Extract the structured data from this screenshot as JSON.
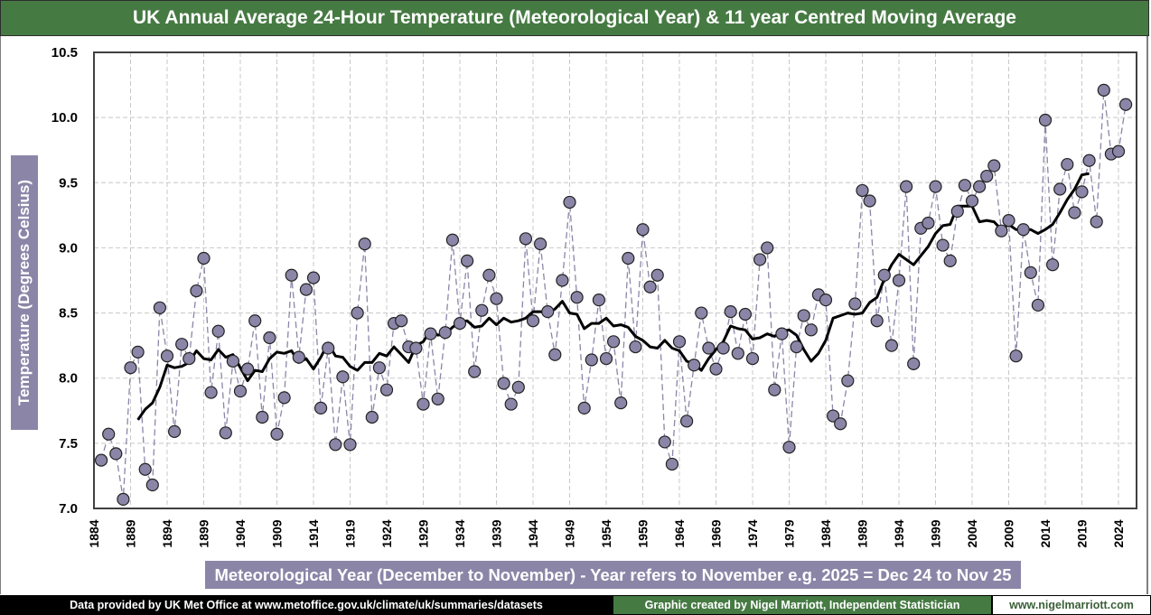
{
  "chart_data": {
    "type": "line",
    "title": "UK Annual Average 24-Hour Temperature (Meteorological Year) & 11 year Centred Moving Average",
    "xlabel": "Meteorological  Year (December to November) - Year refers to November e.g. 2025 = Dec 24 to Nov 25",
    "ylabel": "Temperature (Degrees Celsius)",
    "ylim": [
      7.0,
      10.5
    ],
    "yticks": [
      "7.0",
      "7.5",
      "8.0",
      "8.5",
      "9.0",
      "9.5",
      "10.0",
      "10.5"
    ],
    "ytick_values": [
      7.0,
      7.5,
      8.0,
      8.5,
      9.0,
      9.5,
      10.0,
      10.5
    ],
    "xlim": [
      1884,
      2025
    ],
    "xticks": [
      1884,
      1889,
      1894,
      1899,
      1904,
      1909,
      1914,
      1919,
      1924,
      1929,
      1934,
      1939,
      1944,
      1949,
      1954,
      1959,
      1964,
      1969,
      1974,
      1979,
      1984,
      1989,
      1994,
      1999,
      2004,
      2009,
      2014,
      2019,
      2024
    ],
    "grid": true,
    "legend": "none",
    "series": [
      {
        "name": "Annual Average Temperature",
        "style": "dashed line with circle markers",
        "color": "#8b86a8",
        "start_year": 1885,
        "values": [
          7.37,
          7.57,
          7.42,
          7.07,
          8.08,
          8.2,
          7.3,
          7.18,
          8.54,
          8.17,
          7.59,
          8.26,
          8.15,
          8.67,
          8.92,
          7.89,
          8.36,
          7.58,
          8.13,
          7.9,
          8.07,
          8.44,
          7.7,
          8.31,
          7.57,
          7.85,
          8.79,
          8.16,
          8.68,
          8.77,
          7.77,
          8.23,
          7.49,
          8.01,
          7.49,
          8.5,
          9.03,
          7.7,
          8.08,
          7.91,
          8.42,
          8.44,
          8.24,
          8.23,
          7.8,
          8.34,
          7.84,
          8.35,
          9.06,
          8.42,
          8.9,
          8.05,
          8.52,
          8.79,
          8.61,
          7.96,
          7.8,
          7.93,
          9.07,
          8.44,
          9.03,
          8.51,
          8.18,
          8.75,
          9.35,
          8.62,
          7.77,
          8.14,
          8.6,
          8.15,
          8.28,
          7.81,
          8.92,
          8.24,
          9.14,
          8.7,
          8.79,
          7.51,
          7.34,
          8.28,
          7.67,
          8.1,
          8.5,
          8.23,
          8.07,
          8.23,
          8.51,
          8.19,
          8.49,
          8.15,
          8.91,
          9.0,
          7.91,
          8.34,
          7.47,
          8.24,
          8.48,
          8.37,
          8.64,
          8.6,
          7.71,
          7.65,
          7.98,
          8.57,
          9.44,
          9.36,
          8.44,
          8.79,
          8.25,
          8.75,
          9.47,
          8.11,
          9.15,
          9.19,
          9.47,
          9.02,
          8.9,
          9.28,
          9.48,
          9.36,
          9.47,
          9.55,
          9.63,
          9.13,
          9.21,
          8.17,
          9.14,
          8.81,
          8.56,
          9.98,
          8.87,
          9.45,
          9.64,
          9.27,
          9.43,
          9.67,
          9.2,
          10.21,
          9.72,
          9.74,
          10.1
        ]
      },
      {
        "name": "11 year Centred Moving Average",
        "style": "solid thick line",
        "color": "#000000",
        "start_year": 1890,
        "values": [
          7.68,
          7.76,
          7.81,
          7.93,
          8.1,
          8.08,
          8.09,
          8.12,
          8.21,
          8.15,
          8.14,
          8.22,
          8.16,
          8.18,
          8.08,
          7.98,
          8.06,
          8.05,
          8.15,
          8.2,
          8.19,
          8.21,
          8.12,
          8.15,
          8.07,
          8.16,
          8.27,
          8.17,
          8.16,
          8.09,
          8.06,
          8.12,
          8.12,
          8.19,
          8.17,
          8.24,
          8.18,
          8.12,
          8.25,
          8.28,
          8.37,
          8.33,
          8.34,
          8.39,
          8.43,
          8.44,
          8.39,
          8.4,
          8.46,
          8.41,
          8.46,
          8.43,
          8.44,
          8.46,
          8.51,
          8.51,
          8.5,
          8.53,
          8.59,
          8.5,
          8.49,
          8.38,
          8.42,
          8.42,
          8.46,
          8.4,
          8.41,
          8.39,
          8.32,
          8.29,
          8.24,
          8.23,
          8.29,
          8.23,
          8.21,
          8.13,
          8.11,
          8.06,
          8.15,
          8.22,
          8.28,
          8.4,
          8.38,
          8.37,
          8.3,
          8.31,
          8.34,
          8.32,
          8.36,
          8.37,
          8.33,
          8.22,
          8.13,
          8.19,
          8.29,
          8.46,
          8.48,
          8.5,
          8.49,
          8.5,
          8.58,
          8.62,
          8.76,
          8.87,
          8.95,
          8.91,
          8.87,
          8.94,
          9.01,
          9.11,
          9.17,
          9.18,
          9.32,
          9.32,
          9.32,
          9.2,
          9.21,
          9.2,
          9.14,
          9.18,
          9.14,
          9.14,
          9.14,
          9.11,
          9.14,
          9.18,
          9.27,
          9.37,
          9.45,
          9.56,
          9.57
        ]
      }
    ]
  },
  "colors": {
    "title_bg": "#467a43",
    "label_bg": "#8b86a8",
    "marker_fill": "#8b86a8",
    "ma_line": "#000000"
  },
  "footer": {
    "source": "Data provided by UK Met Office at www.metoffice.gov.uk/climate/uk/summaries/datasets",
    "credit": "Graphic created by Nigel Marriott, Independent Statistician",
    "website": "www.nigelmarriott.com"
  }
}
